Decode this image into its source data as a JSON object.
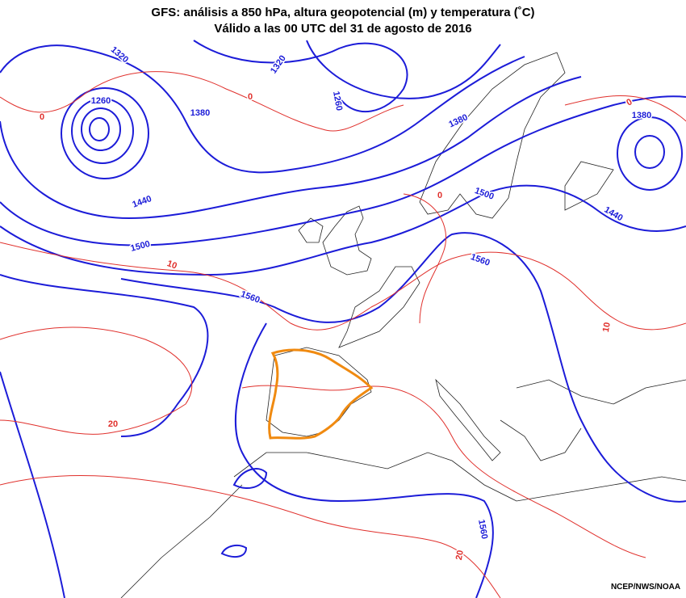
{
  "header": {
    "title": "GFS: análisis a 850 hPa, altura geopotencial (m) y temperatura (˚C)",
    "subtitle": "Válido a las 00 UTC del 31 de agosto de 2016"
  },
  "geopotential_labels": [
    "1320",
    "1260",
    "1380",
    "1320",
    "1260",
    "1380",
    "1500",
    "1440",
    "1500",
    "1560",
    "1560",
    "1440",
    "1380",
    "1560"
  ],
  "temperature_labels": [
    "0",
    "0",
    "0",
    "10",
    "0",
    "10",
    "20",
    "20"
  ],
  "geopotential_color": "#1c1cd8",
  "temperature_color": "#e0302c",
  "credit": "NCEP/NWS/NOAA"
}
